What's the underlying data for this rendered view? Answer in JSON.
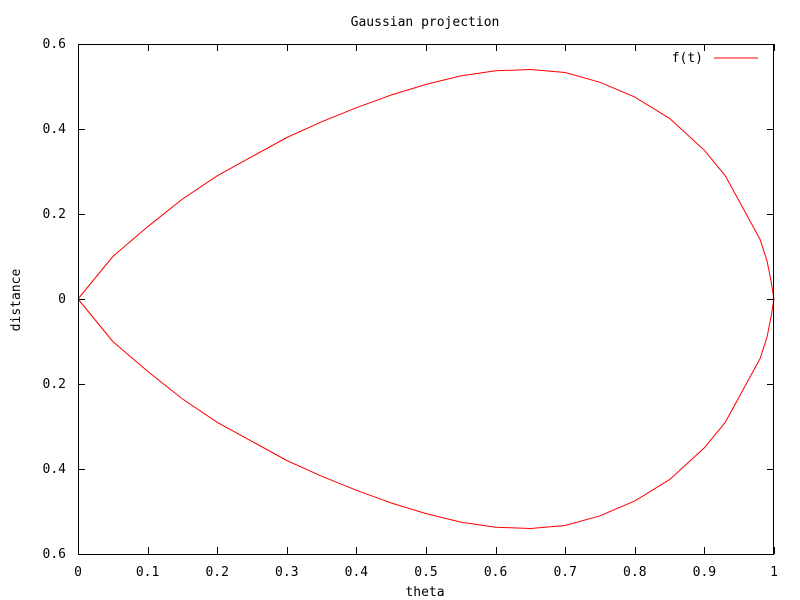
{
  "colors": {
    "series": "#ff0000",
    "axis": "#000000",
    "background": "#ffffff"
  },
  "chart_data": {
    "type": "line",
    "title": "Gaussian projection",
    "xlabel": "theta",
    "ylabel": "distance",
    "xlim": [
      0,
      1
    ],
    "ylim": [
      -0.6,
      0.6
    ],
    "grid": false,
    "legend_position": "top-right",
    "x_ticks": [
      0,
      0.1,
      0.2,
      0.3,
      0.4,
      0.5,
      0.6,
      0.7,
      0.8,
      0.9,
      1
    ],
    "x_tick_labels": [
      "0",
      "0.1",
      "0.2",
      "0.3",
      "0.4",
      "0.5",
      "0.6",
      "0.7",
      "0.8",
      "0.9",
      "1"
    ],
    "y_ticks": [
      0.6,
      0.4,
      0.2,
      0,
      -0.2,
      -0.4,
      -0.6
    ],
    "y_tick_labels": [
      "0.6",
      "0.4",
      "0.2",
      "0",
      "0.2",
      "0.4",
      "0.6"
    ],
    "series": [
      {
        "name": "f(t)",
        "color": "#ff0000",
        "points": [
          [
            0,
            0
          ],
          [
            0.01,
            0.02
          ],
          [
            0.02,
            0.04
          ],
          [
            0.03,
            0.06
          ],
          [
            0.05,
            0.1
          ],
          [
            0.075,
            0.135
          ],
          [
            0.1,
            0.17
          ],
          [
            0.15,
            0.235
          ],
          [
            0.2,
            0.29
          ],
          [
            0.25,
            0.335
          ],
          [
            0.3,
            0.38
          ],
          [
            0.35,
            0.417
          ],
          [
            0.4,
            0.45
          ],
          [
            0.45,
            0.48
          ],
          [
            0.5,
            0.505
          ],
          [
            0.55,
            0.525
          ],
          [
            0.6,
            0.537
          ],
          [
            0.65,
            0.54
          ],
          [
            0.7,
            0.533
          ],
          [
            0.75,
            0.51
          ],
          [
            0.8,
            0.475
          ],
          [
            0.85,
            0.425
          ],
          [
            0.9,
            0.35
          ],
          [
            0.93,
            0.29
          ],
          [
            0.96,
            0.2
          ],
          [
            0.98,
            0.14
          ],
          [
            0.99,
            0.09
          ],
          [
            0.996,
            0.04
          ],
          [
            1,
            0
          ],
          [
            0.996,
            -0.04
          ],
          [
            0.99,
            -0.09
          ],
          [
            0.98,
            -0.14
          ],
          [
            0.96,
            -0.2
          ],
          [
            0.93,
            -0.29
          ],
          [
            0.9,
            -0.35
          ],
          [
            0.85,
            -0.425
          ],
          [
            0.8,
            -0.475
          ],
          [
            0.75,
            -0.51
          ],
          [
            0.7,
            -0.533
          ],
          [
            0.65,
            -0.54
          ],
          [
            0.6,
            -0.537
          ],
          [
            0.55,
            -0.525
          ],
          [
            0.5,
            -0.505
          ],
          [
            0.45,
            -0.48
          ],
          [
            0.4,
            -0.45
          ],
          [
            0.35,
            -0.417
          ],
          [
            0.3,
            -0.38
          ],
          [
            0.25,
            -0.335
          ],
          [
            0.2,
            -0.29
          ],
          [
            0.15,
            -0.235
          ],
          [
            0.1,
            -0.17
          ],
          [
            0.075,
            -0.135
          ],
          [
            0.05,
            -0.1
          ],
          [
            0.03,
            -0.06
          ],
          [
            0.02,
            -0.04
          ],
          [
            0.01,
            -0.02
          ],
          [
            0,
            0
          ]
        ]
      }
    ]
  }
}
